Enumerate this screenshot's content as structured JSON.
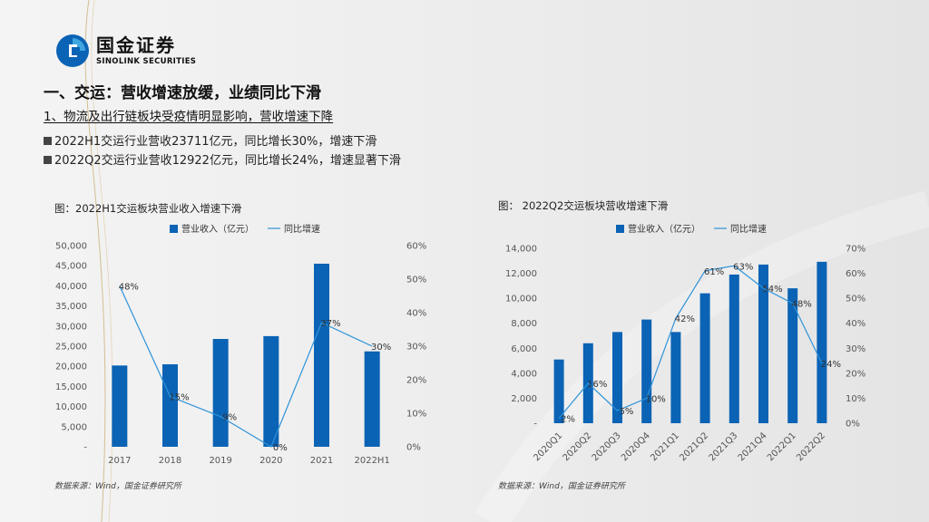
{
  "logo": {
    "cn": "国金证券",
    "en": "SINOLINK SECURITIES",
    "colors": {
      "blue": "#0b63b5",
      "light": "#3fa6e0"
    }
  },
  "heading": "一、交运：营收增速放缓，业绩同比下滑",
  "subheading": "1、物流及出行链板块受疫情明显影响，营收增速下降",
  "bullets": [
    "2022H1交运行业营收23711亿元，同比增长30%，增速下滑",
    "2022Q2交运行业营收12922亿元，同比增长24%，增速显著下滑"
  ],
  "colors": {
    "bar": "#0b63b5",
    "line": "#2e93d8"
  },
  "chart_data": [
    {
      "type": "bar",
      "title": "图：2022H1交运板块营业收入增速下滑",
      "categories": [
        "2017",
        "2018",
        "2019",
        "2020",
        "2021",
        "2022H1"
      ],
      "series": [
        {
          "name": "营业收入（亿元）",
          "type": "bar",
          "axis": "left",
          "values": [
            20200,
            20500,
            26800,
            27500,
            45500,
            23711
          ]
        },
        {
          "name": "同比增速",
          "type": "line",
          "axis": "right",
          "values": [
            48,
            15,
            9,
            0,
            37,
            30
          ],
          "labels": [
            "48%",
            "15%",
            "9%",
            "0%",
            "37%",
            "30%"
          ]
        }
      ],
      "y_left": {
        "ticks": [
          "-",
          "5,000",
          "10,000",
          "15,000",
          "20,000",
          "25,000",
          "30,000",
          "35,000",
          "40,000",
          "45,000",
          "50,000"
        ],
        "min": 0,
        "max": 50000
      },
      "y_right": {
        "ticks": [
          "0%",
          "10%",
          "20%",
          "30%",
          "40%",
          "50%",
          "60%"
        ],
        "min": 0,
        "max": 60
      },
      "legend": "top",
      "source": "数据来源：Wind，国金证券研究所"
    },
    {
      "type": "bar",
      "title": "图： 2022Q2交运板块营收增速下滑",
      "categories": [
        "2020Q1",
        "2020Q2",
        "2020Q3",
        "2020Q4",
        "2021Q1",
        "2021Q2",
        "2021Q3",
        "2021Q4",
        "2022Q1",
        "2022Q2"
      ],
      "series": [
        {
          "name": "营业收入（亿元）",
          "type": "bar",
          "axis": "left",
          "values": [
            5100,
            6400,
            7300,
            8300,
            7300,
            10400,
            11900,
            12700,
            10800,
            12922
          ]
        },
        {
          "name": "同比增速",
          "type": "line",
          "axis": "right",
          "values": [
            2,
            16,
            5,
            10,
            42,
            61,
            63,
            54,
            48,
            24
          ],
          "labels": [
            "2%",
            "16%",
            "5%",
            "10%",
            "42%",
            "61%",
            "63%",
            "54%",
            "48%",
            "24%"
          ]
        }
      ],
      "y_left": {
        "ticks": [
          "-",
          "2,000",
          "4,000",
          "6,000",
          "8,000",
          "10,000",
          "12,000",
          "14,000"
        ],
        "min": 0,
        "max": 14000
      },
      "y_right": {
        "ticks": [
          "0%",
          "10%",
          "20%",
          "30%",
          "40%",
          "50%",
          "60%",
          "70%"
        ],
        "min": 0,
        "max": 70
      },
      "legend": "top",
      "source": "数据来源：Wind，国金证券研究所"
    }
  ]
}
